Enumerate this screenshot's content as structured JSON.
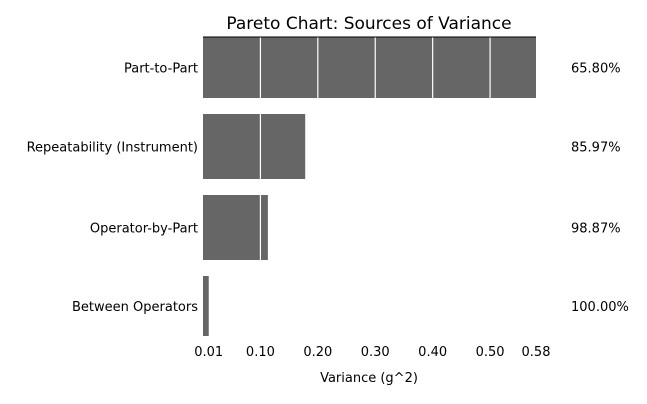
{
  "chart_data": {
    "type": "bar",
    "orientation": "horizontal",
    "title": "Pareto Chart: Sources of Variance",
    "xlabel": "Variance (g^2)",
    "ylabel": "",
    "categories": [
      "Part-to-Part",
      "Repeatability (Instrument)",
      "Operator-by-Part",
      "Between Operators"
    ],
    "values": [
      0.58,
      0.178,
      0.113,
      0.01
    ],
    "cumulative_labels": [
      "65.80%",
      "85.97%",
      "98.87%",
      "100.00%"
    ],
    "xlim": [
      0,
      0.58
    ],
    "xticks": [
      0.01,
      0.1,
      0.2,
      0.3,
      0.4,
      0.5,
      0.58
    ],
    "xtick_labels": [
      "0.01",
      "0.10",
      "0.20",
      "0.30",
      "0.40",
      "0.50",
      "0.58"
    ],
    "gridlines": [
      0.1,
      0.2,
      0.3,
      0.4,
      0.5
    ],
    "grid": true,
    "bar_color": "#666666",
    "grid_color": "#ffffff",
    "legend": "none"
  }
}
